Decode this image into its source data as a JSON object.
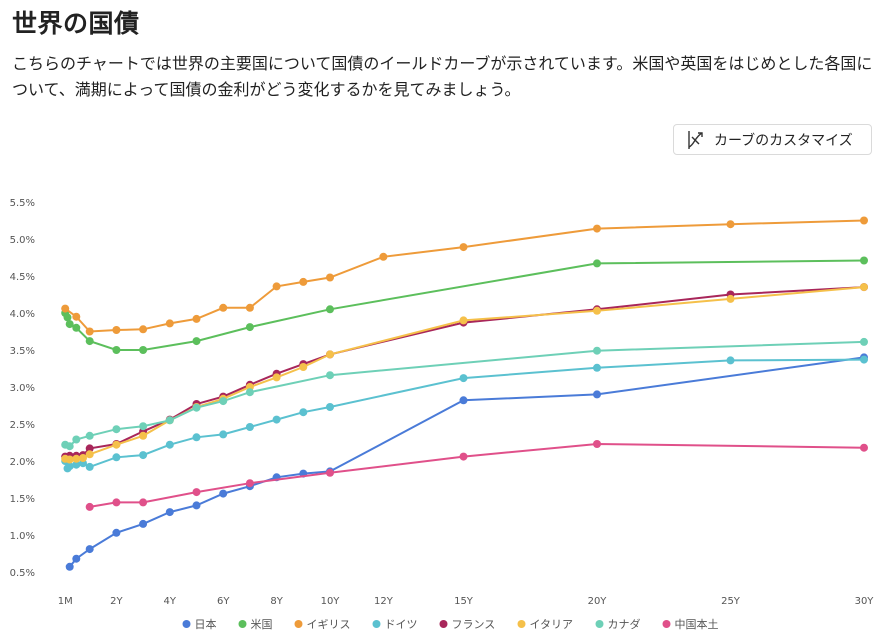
{
  "page": {
    "title": "世界の国債",
    "description": "こちらのチャートでは世界の主要国について国債のイールドカーブが示されています。米国や英国をはじめとした各国について、満期によって国債の金利がどう変化するかを見てみましょう。",
    "customize_label": "カーブのカスタマイズ"
  },
  "chart_data": {
    "type": "line",
    "title": "",
    "xlabel": "",
    "ylabel": "",
    "x_ticks": [
      "1M",
      "2Y",
      "4Y",
      "6Y",
      "8Y",
      "10Y",
      "12Y",
      "15Y",
      "20Y",
      "25Y",
      "30Y"
    ],
    "x_tick_values": [
      0.083,
      2,
      4,
      6,
      8,
      10,
      12,
      15,
      20,
      25,
      30
    ],
    "y_ticks": [
      "5.5%",
      "5.0%",
      "4.5%",
      "4.0%",
      "3.5%",
      "3.0%",
      "2.5%",
      "2.0%",
      "1.5%",
      "1.0%",
      "0.5%"
    ],
    "y_tick_values": [
      5.5,
      5.0,
      4.5,
      4.0,
      3.5,
      3.0,
      2.5,
      2.0,
      1.5,
      1.0,
      0.5
    ],
    "xlim": [
      0,
      30
    ],
    "ylim": [
      0.5,
      5.5
    ],
    "grid": false,
    "legend_position": "bottom-center",
    "series": [
      {
        "name": "日本",
        "color": "#4a7bd8",
        "points": [
          [
            0.25,
            0.57
          ],
          [
            0.5,
            0.68
          ],
          [
            1,
            0.81
          ],
          [
            2,
            1.03
          ],
          [
            3,
            1.15
          ],
          [
            4,
            1.31
          ],
          [
            5,
            1.4
          ],
          [
            6,
            1.56
          ],
          [
            7,
            1.66
          ],
          [
            8,
            1.78
          ],
          [
            9,
            1.83
          ],
          [
            10,
            1.86
          ],
          [
            15,
            2.82
          ],
          [
            20,
            2.9
          ],
          [
            30,
            3.4
          ]
        ]
      },
      {
        "name": "米国",
        "color": "#5cbf5c",
        "points": [
          [
            0.083,
            4.0
          ],
          [
            0.17,
            3.94
          ],
          [
            0.25,
            3.85
          ],
          [
            0.5,
            3.8
          ],
          [
            1,
            3.62
          ],
          [
            2,
            3.5
          ],
          [
            3,
            3.5
          ],
          [
            5,
            3.62
          ],
          [
            7,
            3.81
          ],
          [
            10,
            4.05
          ],
          [
            20,
            4.67
          ],
          [
            30,
            4.71
          ]
        ]
      },
      {
        "name": "イギリス",
        "color": "#ee9b3a",
        "points": [
          [
            0.083,
            4.06
          ],
          [
            0.5,
            3.95
          ],
          [
            1,
            3.75
          ],
          [
            2,
            3.77
          ],
          [
            3,
            3.78
          ],
          [
            4,
            3.86
          ],
          [
            5,
            3.92
          ],
          [
            6,
            4.07
          ],
          [
            7,
            4.07
          ],
          [
            8,
            4.36
          ],
          [
            9,
            4.42
          ],
          [
            10,
            4.48
          ],
          [
            12,
            4.76
          ],
          [
            15,
            4.89
          ],
          [
            20,
            5.14
          ],
          [
            25,
            5.2
          ],
          [
            30,
            5.25
          ]
        ]
      },
      {
        "name": "ドイツ",
        "color": "#5bc1d0",
        "points": [
          [
            0.083,
            2.0
          ],
          [
            0.17,
            1.9
          ],
          [
            0.25,
            1.93
          ],
          [
            0.5,
            1.95
          ],
          [
            0.75,
            1.97
          ],
          [
            1,
            1.92
          ],
          [
            2,
            2.05
          ],
          [
            3,
            2.08
          ],
          [
            4,
            2.22
          ],
          [
            5,
            2.32
          ],
          [
            6,
            2.36
          ],
          [
            7,
            2.46
          ],
          [
            8,
            2.56
          ],
          [
            9,
            2.66
          ],
          [
            10,
            2.73
          ],
          [
            15,
            3.12
          ],
          [
            20,
            3.26
          ],
          [
            25,
            3.36
          ],
          [
            30,
            3.37
          ]
        ]
      },
      {
        "name": "フランス",
        "color": "#a8265a",
        "points": [
          [
            0.083,
            2.06
          ],
          [
            0.25,
            2.07
          ],
          [
            0.5,
            2.07
          ],
          [
            0.75,
            2.08
          ],
          [
            1,
            2.17
          ],
          [
            2,
            2.23
          ],
          [
            3,
            2.4
          ],
          [
            4,
            2.56
          ],
          [
            5,
            2.77
          ],
          [
            6,
            2.87
          ],
          [
            7,
            3.03
          ],
          [
            8,
            3.18
          ],
          [
            9,
            3.31
          ],
          [
            10,
            3.44
          ],
          [
            15,
            3.87
          ],
          [
            20,
            4.05
          ],
          [
            25,
            4.25
          ],
          [
            30,
            4.35
          ]
        ]
      },
      {
        "name": "イタリア",
        "color": "#f5c04a",
        "points": [
          [
            0.083,
            2.03
          ],
          [
            0.25,
            2.02
          ],
          [
            0.5,
            2.03
          ],
          [
            0.75,
            2.04
          ],
          [
            1,
            2.09
          ],
          [
            2,
            2.22
          ],
          [
            3,
            2.34
          ],
          [
            4,
            2.55
          ],
          [
            5,
            2.73
          ],
          [
            6,
            2.84
          ],
          [
            7,
            3.0
          ],
          [
            8,
            3.13
          ],
          [
            9,
            3.27
          ],
          [
            10,
            3.44
          ],
          [
            15,
            3.9
          ],
          [
            20,
            4.03
          ],
          [
            25,
            4.19
          ],
          [
            30,
            4.35
          ]
        ]
      },
      {
        "name": "カナダ",
        "color": "#6ed0b7",
        "points": [
          [
            0.083,
            2.22
          ],
          [
            0.25,
            2.2
          ],
          [
            0.5,
            2.29
          ],
          [
            1,
            2.34
          ],
          [
            2,
            2.43
          ],
          [
            3,
            2.47
          ],
          [
            4,
            2.55
          ],
          [
            5,
            2.72
          ],
          [
            6,
            2.81
          ],
          [
            7,
            2.93
          ],
          [
            10,
            3.16
          ],
          [
            20,
            3.49
          ],
          [
            30,
            3.61
          ]
        ]
      },
      {
        "name": "中国本土",
        "color": "#e0508a",
        "points": [
          [
            1,
            1.38
          ],
          [
            2,
            1.44
          ],
          [
            3,
            1.44
          ],
          [
            5,
            1.58
          ],
          [
            7,
            1.7
          ],
          [
            10,
            1.84
          ],
          [
            15,
            2.06
          ],
          [
            20,
            2.23
          ],
          [
            30,
            2.18
          ]
        ]
      }
    ]
  }
}
